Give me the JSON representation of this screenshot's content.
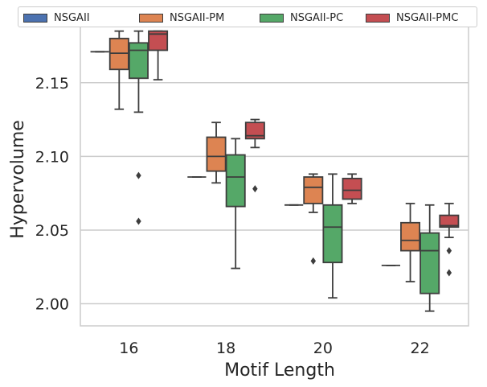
{
  "chart_data": {
    "type": "box",
    "xlabel": "Motif Length",
    "ylabel": "Hypervolume",
    "categories": [
      "16",
      "18",
      "20",
      "22"
    ],
    "ylim": [
      1.985,
      2.193
    ],
    "yticks": [
      2.0,
      2.05,
      2.1,
      2.15
    ],
    "ytick_labels": [
      "2.00",
      "2.05",
      "2.10",
      "2.15"
    ],
    "grid": "horizontal",
    "legend_position": "top",
    "series": [
      {
        "name": "NSGAII",
        "color": "#4c72b0",
        "boxes": [
          {
            "min": 2.171,
            "q1": 2.171,
            "median": 2.171,
            "q3": 2.171,
            "max": 2.171,
            "outliers": []
          },
          {
            "min": 2.086,
            "q1": 2.086,
            "median": 2.086,
            "q3": 2.086,
            "max": 2.086,
            "outliers": []
          },
          {
            "min": 2.067,
            "q1": 2.067,
            "median": 2.067,
            "q3": 2.067,
            "max": 2.067,
            "outliers": []
          },
          {
            "min": 2.026,
            "q1": 2.026,
            "median": 2.026,
            "q3": 2.026,
            "max": 2.026,
            "outliers": []
          }
        ]
      },
      {
        "name": "NSGAII-PM",
        "color": "#dd8452",
        "boxes": [
          {
            "min": 2.132,
            "q1": 2.159,
            "median": 2.17,
            "q3": 2.18,
            "max": 2.185,
            "outliers": []
          },
          {
            "min": 2.082,
            "q1": 2.09,
            "median": 2.1,
            "q3": 2.113,
            "max": 2.123,
            "outliers": []
          },
          {
            "min": 2.062,
            "q1": 2.068,
            "median": 2.079,
            "q3": 2.086,
            "max": 2.088,
            "outliers": [
              2.029
            ]
          },
          {
            "min": 2.015,
            "q1": 2.036,
            "median": 2.043,
            "q3": 2.055,
            "max": 2.068,
            "outliers": []
          }
        ]
      },
      {
        "name": "NSGAII-PC",
        "color": "#55a868",
        "boxes": [
          {
            "min": 2.13,
            "q1": 2.153,
            "median": 2.172,
            "q3": 2.177,
            "max": 2.185,
            "outliers": [
              2.087,
              2.056
            ]
          },
          {
            "min": 2.024,
            "q1": 2.066,
            "median": 2.086,
            "q3": 2.101,
            "max": 2.112,
            "outliers": []
          },
          {
            "min": 2.004,
            "q1": 2.028,
            "median": 2.052,
            "q3": 2.067,
            "max": 2.088,
            "outliers": []
          },
          {
            "min": 1.995,
            "q1": 2.007,
            "median": 2.036,
            "q3": 2.048,
            "max": 2.067,
            "outliers": []
          }
        ]
      },
      {
        "name": "NSGAII-PMC",
        "color": "#c44e52",
        "boxes": [
          {
            "min": 2.152,
            "q1": 2.172,
            "median": 2.183,
            "q3": 2.185,
            "max": 2.185,
            "outliers": []
          },
          {
            "min": 2.106,
            "q1": 2.112,
            "median": 2.114,
            "q3": 2.123,
            "max": 2.125,
            "outliers": [
              2.078
            ]
          },
          {
            "min": 2.068,
            "q1": 2.071,
            "median": 2.077,
            "q3": 2.085,
            "max": 2.088,
            "outliers": []
          },
          {
            "min": 2.045,
            "q1": 2.052,
            "median": 2.053,
            "q3": 2.06,
            "max": 2.068,
            "outliers": [
              2.036,
              2.021
            ]
          }
        ]
      }
    ]
  }
}
